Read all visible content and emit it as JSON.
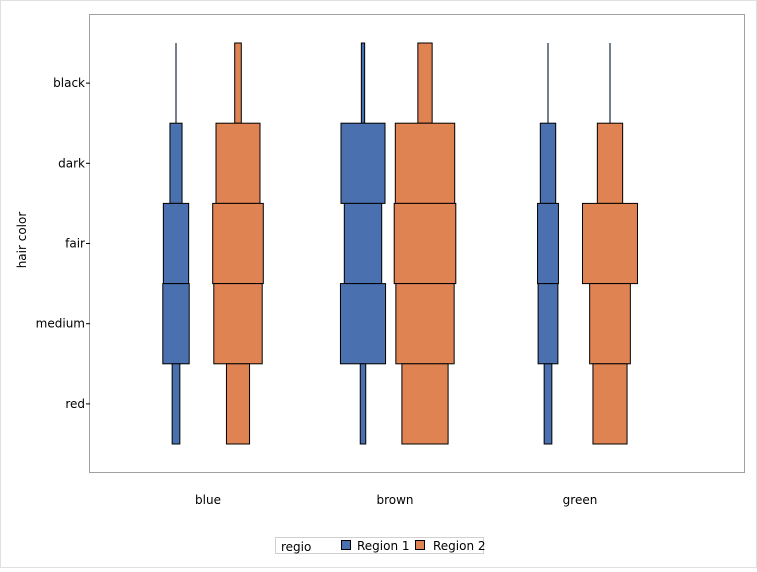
{
  "chart_data": {
    "type": "bar",
    "orientation": "horizontal-width-mosaic",
    "ylabel": "hair color",
    "xlabel": "",
    "categories": [
      "blue",
      "brown",
      "green"
    ],
    "y_categories": [
      "black",
      "dark",
      "fair",
      "medium",
      "red"
    ],
    "legend": {
      "title": "regio",
      "position": "bottom",
      "entries": [
        "Region 1",
        "Region 2"
      ]
    },
    "colors": {
      "Region 1": "#4a70b0",
      "Region 2": "#e08352"
    },
    "grid": false,
    "series": [
      {
        "name": "Region 1",
        "values": {
          "blue": {
            "black": 0,
            "dark": 11,
            "fair": 23,
            "medium": 24,
            "red": 7
          },
          "brown": {
            "black": 3,
            "dark": 40,
            "fair": 34,
            "medium": 41,
            "red": 5
          },
          "green": {
            "black": 0,
            "dark": 14,
            "fair": 19,
            "medium": 18,
            "red": 7
          }
        }
      },
      {
        "name": "Region 2",
        "values": {
          "blue": {
            "black": 6,
            "dark": 40,
            "fair": 46,
            "medium": 44,
            "red": 21
          },
          "brown": {
            "black": 13,
            "dark": 54,
            "fair": 56,
            "medium": 53,
            "red": 42
          },
          "green": {
            "black": 0,
            "dark": 23,
            "fair": 50,
            "medium": 37,
            "red": 31
          }
        }
      }
    ]
  }
}
